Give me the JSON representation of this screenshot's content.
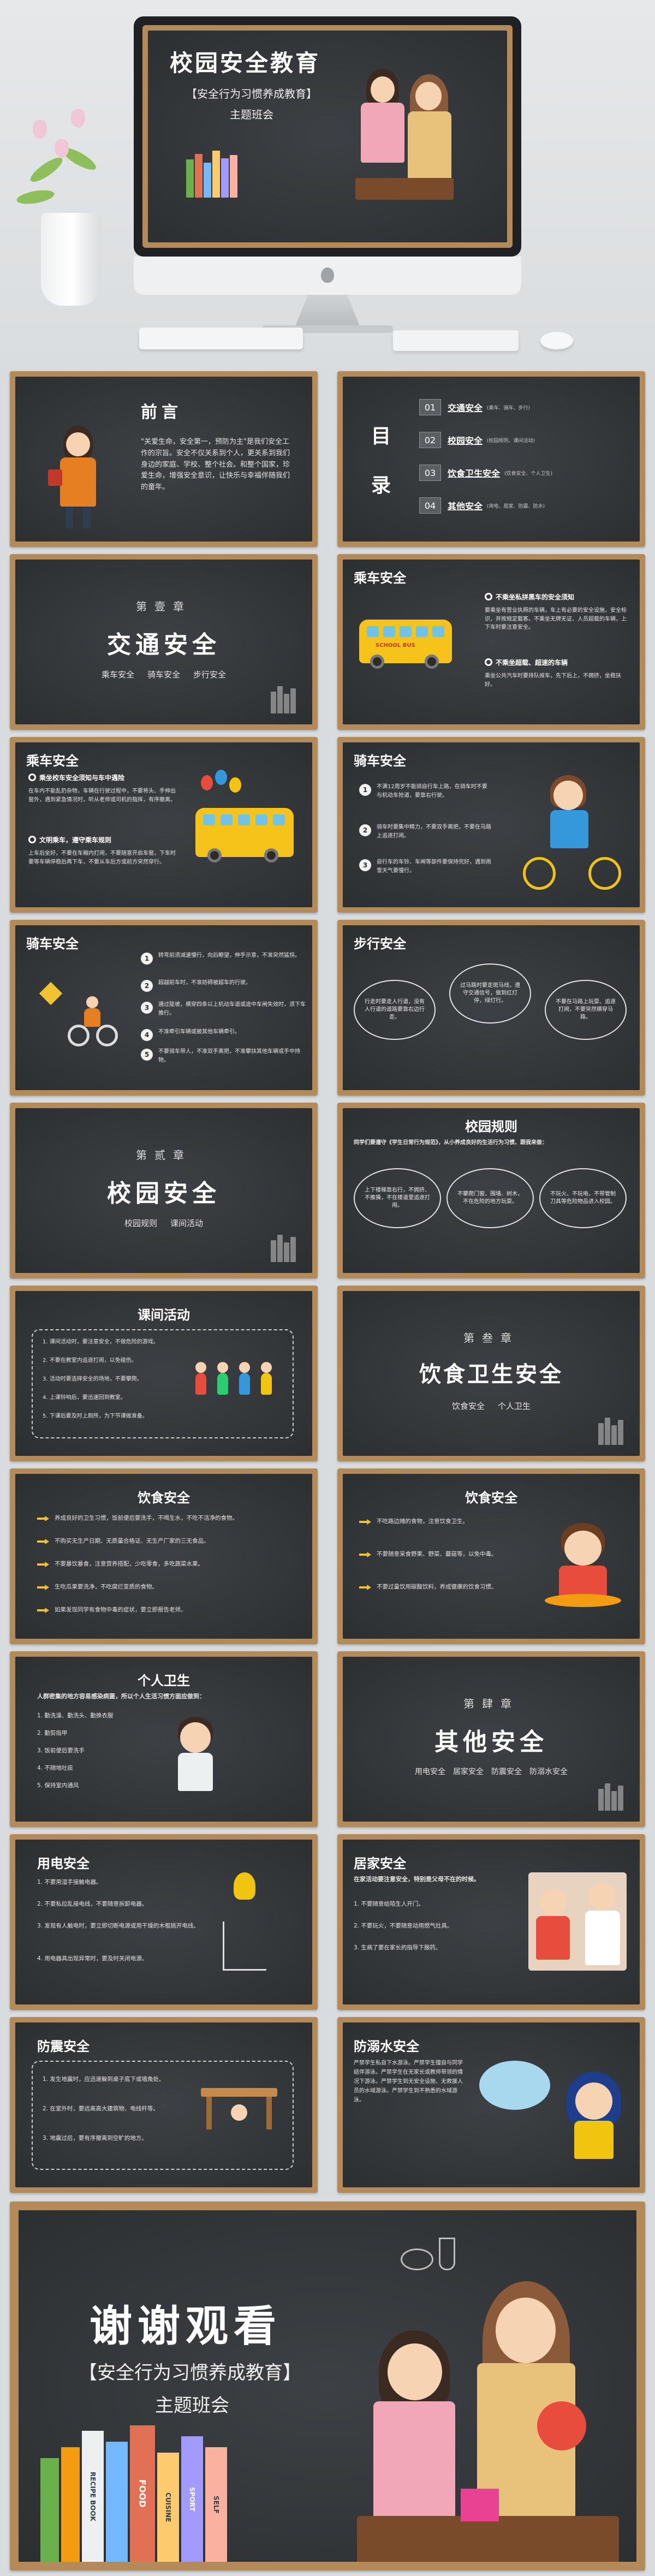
{
  "hero": {
    "title": "校园安全教育",
    "subtitle": "【安全行为习惯养成教育】",
    "tagline": "主题班会"
  },
  "slides": {
    "preface": {
      "title": "前言",
      "body": "\"关爱生命，安全第一，预防为主\"是我们安全工作的宗旨。安全不仅关系到个人，更关系到我们身边的家庭、学校、整个社会。和整个国家，珍爱生命，增强安全意识，让快乐与幸福伴随我们的童年。"
    },
    "toc": {
      "title_a": "目",
      "title_b": "录",
      "items": [
        {
          "num": "01",
          "label": "交通安全",
          "sub": "(乘车、骑车、步行)"
        },
        {
          "num": "02",
          "label": "校园安全",
          "sub": "(校园规则、课间活动)"
        },
        {
          "num": "03",
          "label": "饮食卫生安全",
          "sub": "(饮食安全、个人卫生)"
        },
        {
          "num": "04",
          "label": "其他安全",
          "sub": "(用电、居家、防震、防水)"
        }
      ]
    },
    "ch1": {
      "tag": "第壹章",
      "title": "交通安全",
      "subs": [
        "乘车安全",
        "骑车安全",
        "步行安全"
      ]
    },
    "ride1": {
      "title": "乘车安全",
      "h1": "不乘坐私拼黑车的安全须知",
      "p1": "要乘坐有营业执照的车辆，车上有必要的安全设施，安全标识，并按规定载客。不乘坐无牌无证、人员超载的车辆，上下车时要注意安全。",
      "h2": "不乘坐超载、超速的车辆",
      "p2": "乘坐公共汽车时要排队候车，先下后上，不拥挤，坐稳扶好。",
      "bus_label": "SCHOOL BUS"
    },
    "ride2": {
      "title": "乘车安全",
      "h1": "乘坐校车安全须知与车中遇险",
      "p1": "在车内不能乱扔杂物，车辆在行驶过程中，不要将头、手伸出窗外，遇到紧急情况时，听从老师或司机的指挥，有序撤离。",
      "h2": "文明乘车，遵守乘车规则",
      "p2": "上车后坐好，不要在车厢内打闹，不要随意开启车窗，下车时要等车辆停稳后再下车，不要从车后方或前方突然穿行。"
    },
    "bike1": {
      "title": "骑车安全",
      "items": [
        "不满12周岁不能骑自行车上路，在骑车时不要与机动车抢道，要靠右行驶。",
        "骑车时要集中精力，不要双手离把，不要在马路上追逐打闹。",
        "自行车的车铃、车闸等部件要保持完好，遇到雨雪天气要慢行。"
      ]
    },
    "bike2": {
      "title": "骑车安全",
      "items": [
        "转弯前须减速慢行，向后瞭望，伸手示意，不准突然猛拐。",
        "超越前车时，不准妨碍被超车的行驶。",
        "通过陡坡，横穿四条以上机动车道或途中车闸失效时，须下车推行。",
        "不准牵引车辆或被其他车辆牵引。",
        "不要骑车带人，不准双手离把，不准攀扶其他车辆或手中持物。"
      ]
    },
    "walk": {
      "title": "步行安全",
      "clouds": [
        "行走时要走人行道，没有人行道的道路要靠右边行走。",
        "过马路时要走斑马线，遵守交通信号，做到红灯停，绿灯行。",
        "不要在马路上玩耍、追逐打闹，不要突然横穿马路。"
      ]
    },
    "ch2": {
      "tag": "第贰章",
      "title": "校园安全",
      "subs": [
        "校园规则",
        "课间活动"
      ]
    },
    "rules": {
      "title": "校园规则",
      "intro": "同学们要遵守《学生日常行为规范》，从小养成良好的生活行为习惯、跟我来做：",
      "clouds": [
        "上下楼梯靠右行，不拥挤、不推搡，不在楼道里追逐打闹。",
        "不攀爬门窗、围墙、树木，不在危险的地方玩耍。",
        "不玩火、不玩电，不带管制刀具等危险物品进入校园。"
      ]
    },
    "recess": {
      "title": "课间活动",
      "items": [
        "1. 课间活动时，要注意安全，不做危险的游戏。",
        "2. 不要在教室内追逐打闹，以免碰伤。",
        "3. 活动时要选择安全的场地，不要攀爬。",
        "4. 上课铃响后，要迅速回到教室。",
        "5. 下课后要及时上厕所，为下节课做准备。"
      ]
    },
    "ch3": {
      "tag": "第叁章",
      "title": "饮食卫生安全",
      "subs": [
        "饮食安全",
        "个人卫生"
      ]
    },
    "food1": {
      "title": "饮食安全",
      "items": [
        "养成良好的卫生习惯，饭前便后要洗手，不喝生水，不吃不洁净的食物。",
        "不购买无生产日期、无质量合格证、无生产厂家的三无食品。",
        "不要暴饮暴食，注意营养搭配，少吃零食，多吃蔬菜水果。",
        "生吃瓜果要洗净，不吃腐烂变质的食物。",
        "如果发现同学有食物中毒的症状，要立即报告老师。"
      ]
    },
    "food2": {
      "title": "饮食安全",
      "items": [
        "不吃路边摊的食物，注意饮食卫生。",
        "不要随意采食野果、野菜、蘑菇等，以免中毒。",
        "不要过量饮用碳酸饮料，养成健康的饮食习惯。"
      ]
    },
    "hygiene": {
      "title": "个人卫生",
      "intro": "人群密集的地方容易感染病菌，所以个人生活习惯方面应做到：",
      "items": [
        "1. 勤洗澡、勤洗头、勤换衣服",
        "2. 勤剪指甲",
        "3. 饭前便后要洗手",
        "4. 不随地吐痰",
        "5. 保持室内通风"
      ]
    },
    "ch4": {
      "tag": "第肆章",
      "title": "其他安全",
      "subs": [
        "用电安全",
        "居家安全",
        "防震安全",
        "防溺水安全"
      ]
    },
    "electric": {
      "title": "用电安全",
      "items": [
        "1. 不要用湿手接触电器。",
        "2. 不要私拉乱接电线，不要随意拆卸电器。",
        "3. 发现有人触电时，要立即切断电源或用干燥的木棍挑开电线。",
        "4. 用电器具出现异常时，要及时关闭电源。"
      ]
    },
    "home": {
      "title": "居家安全",
      "intro": "在家活动要注意安全，特别是父母不在的时候。",
      "items": [
        "1. 不要随意给陌生人开门。",
        "2. 不要玩火，不要随意动用燃气灶具。",
        "3. 生病了要在家长的指导下服药。"
      ]
    },
    "quake": {
      "title": "防震安全",
      "items": [
        "1. 发生地震时，应迅速躲到桌子底下或墙角处。",
        "2. 在室外时，要远离高大建筑物、电线杆等。",
        "3. 地震过后，要有序撤离到空旷的地方。"
      ]
    },
    "water": {
      "title": "防溺水安全",
      "body": "严禁学生私自下水游泳。严禁学生擅自与同学结伴游泳。严禁学生在无家长或教师带领的情况下游泳。严禁学生到无安全设施、无救援人员的水域游泳。严禁学生到不熟悉的水域游泳。"
    },
    "thanks": {
      "title": "谢谢观看",
      "subtitle": "【安全行为习惯养成教育】",
      "tagline": "主题班会",
      "book_spines": [
        "RECIPE BOOK",
        "FOOD",
        "CUISINE",
        "SPORT",
        "SELF"
      ]
    }
  },
  "colors": {
    "chalkboard": "#2f3235",
    "frame": "#b48a58",
    "accent_arrow": "#f1c232",
    "bus": "#f6c31b"
  }
}
